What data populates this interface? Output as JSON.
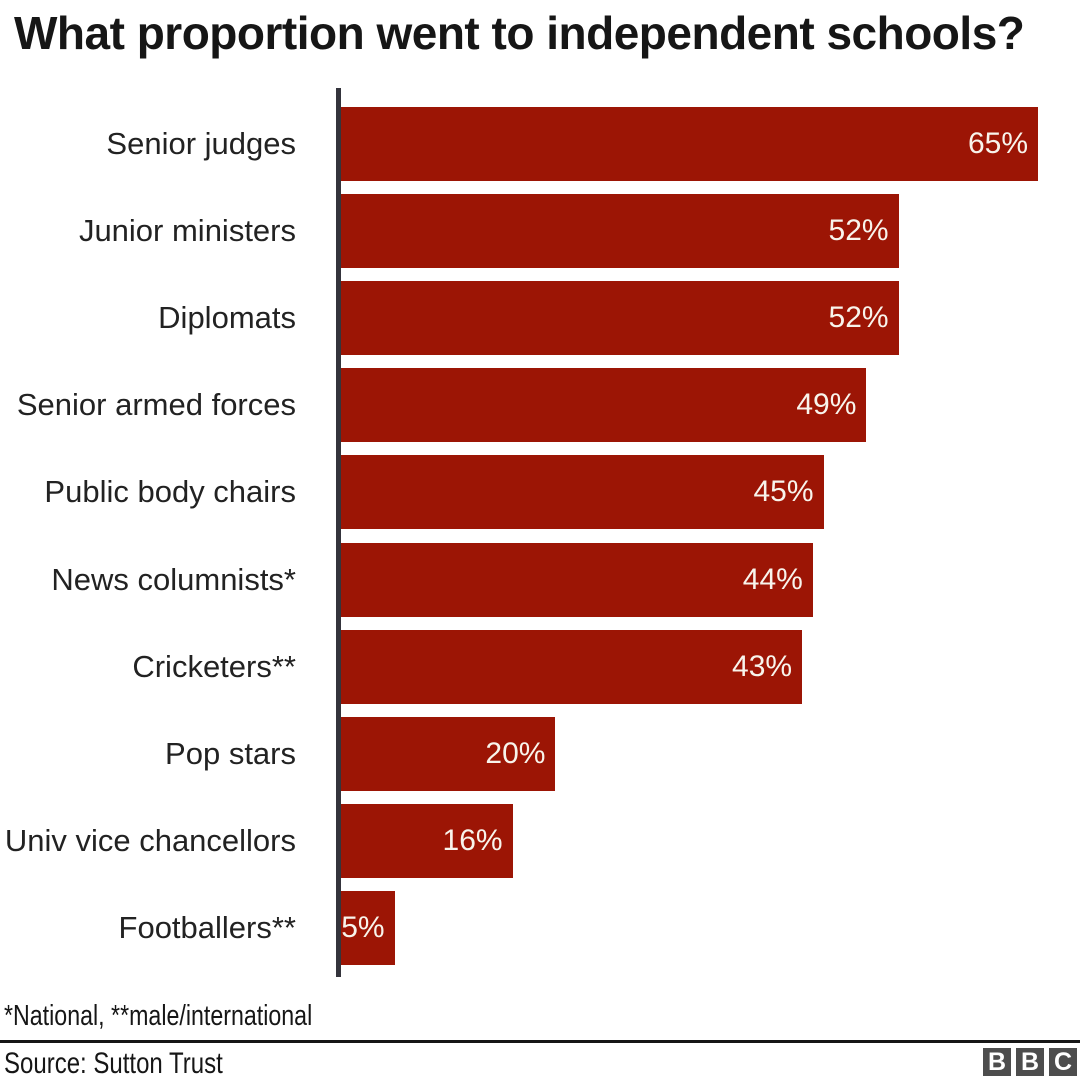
{
  "title": "What proportion went to independent schools?",
  "chart_data": {
    "type": "bar",
    "orientation": "horizontal",
    "title": "What proportion went to independent schools?",
    "categories": [
      "Senior judges",
      "Junior ministers",
      "Diplomats",
      "Senior armed forces",
      "Public body chairs",
      "News columnists*",
      "Cricketers**",
      "Pop stars",
      "Univ vice chancellors",
      "Footballers**"
    ],
    "values": [
      65,
      52,
      52,
      49,
      45,
      44,
      43,
      20,
      16,
      5
    ],
    "value_labels": [
      "65%",
      "52%",
      "52%",
      "49%",
      "45%",
      "44%",
      "43%",
      "20%",
      "16%",
      "5%"
    ],
    "xlabel": "",
    "ylabel": "",
    "xlim": [
      0,
      65
    ],
    "grid": false,
    "legend": false,
    "bar_color": "#9c1505",
    "value_label_color": "#f8f4ec",
    "category_label_color": "#222222",
    "axis_color": "#34343c"
  },
  "footnote": "*National, **male/international",
  "source": "Source: Sutton Trust",
  "logo": {
    "name": "BBC",
    "letters": [
      "B",
      "B",
      "C"
    ],
    "block_color": "#4d4d4d",
    "letter_color": "#ffffff"
  }
}
